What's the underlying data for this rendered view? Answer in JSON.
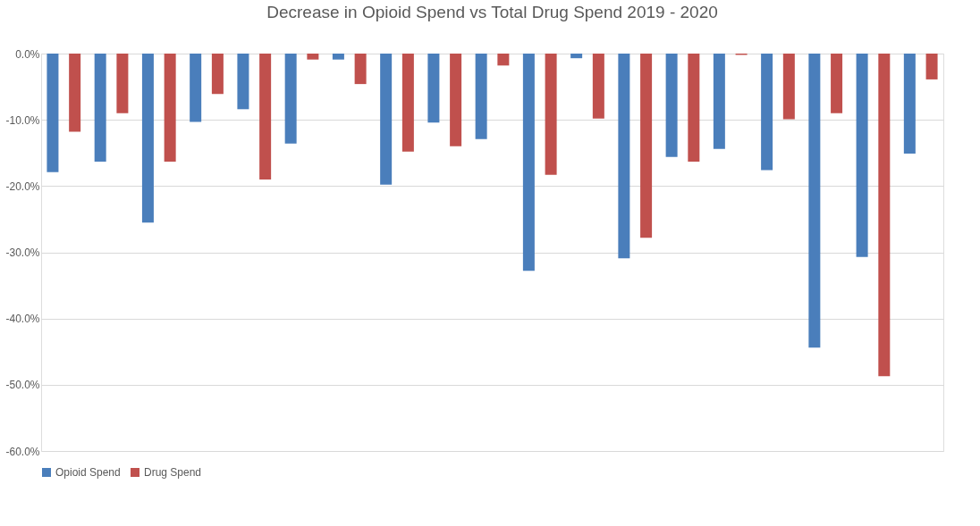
{
  "chart_data": {
    "type": "bar",
    "title": "Decrease in Opioid Spend vs Total Drug Spend 2019 - 2020",
    "categories": [
      null,
      null,
      null,
      null,
      null,
      null,
      null,
      null,
      null,
      null,
      null,
      null,
      null,
      null,
      null,
      null,
      null,
      null,
      null
    ],
    "series": [
      {
        "name": "Opioid Spend",
        "color": "#4a7ebb",
        "values": [
          -17.9,
          -16.3,
          -25.5,
          -10.3,
          -8.4,
          -13.6,
          -0.9,
          -19.8,
          -10.4,
          -12.9,
          -32.8,
          -0.7,
          -30.9,
          -15.6,
          -14.4,
          -17.6,
          -44.4,
          -30.7,
          -15.1
        ]
      },
      {
        "name": "Drug Spend",
        "color": "#c0504d",
        "values": [
          -11.8,
          -9.0,
          -16.3,
          -6.1,
          -19.0,
          -0.9,
          -4.6,
          -14.8,
          -14.0,
          -1.8,
          -18.3,
          -9.8,
          -27.8,
          -16.3,
          -0.2,
          -9.9,
          -9.0,
          -48.7,
          -3.9
        ]
      }
    ],
    "ylim": [
      -60,
      0
    ],
    "yticks": [
      {
        "value": -60,
        "label": "-60.0%"
      },
      {
        "value": -50,
        "label": "-50.0%"
      },
      {
        "value": -40,
        "label": "-40.0%"
      },
      {
        "value": -30,
        "label": "-30.0%"
      },
      {
        "value": -20,
        "label": "-20.0%"
      },
      {
        "value": -10,
        "label": "-10.0%"
      },
      {
        "value": 0,
        "label": "0.0%"
      }
    ],
    "grid": "y",
    "legend": "bottom",
    "tick_labels": "y"
  }
}
